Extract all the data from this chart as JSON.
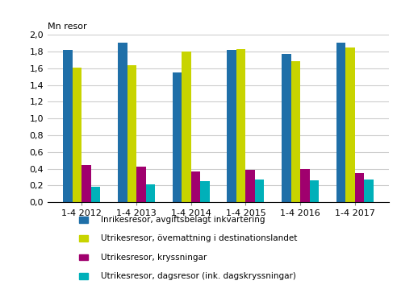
{
  "categories": [
    "1-4 2012",
    "1-4 2013",
    "1-4 2014",
    "1-4 2015",
    "1-4 2016",
    "1-4 2017"
  ],
  "series": [
    {
      "name": "Inrikesresor, avgiftsbelagt inkvartering",
      "color": "#1F6FA8",
      "values": [
        1.82,
        1.9,
        1.55,
        1.82,
        1.77,
        1.9
      ]
    },
    {
      "name": "Utrikesresor, övemattning i destinationslandet",
      "color": "#C8D400",
      "values": [
        1.61,
        1.64,
        1.8,
        1.83,
        1.68,
        1.85
      ]
    },
    {
      "name": "Utrikesresor, kryssningar",
      "color": "#A0006E",
      "values": [
        0.44,
        0.43,
        0.37,
        0.39,
        0.4,
        0.35
      ]
    },
    {
      "name": "Utrikesresor, dagsresor (ink. dagskryssningar)",
      "color": "#00B0B9",
      "values": [
        0.19,
        0.21,
        0.25,
        0.27,
        0.26,
        0.27
      ]
    }
  ],
  "ylabel": "Mn resor",
  "ylim": [
    0,
    2.0
  ],
  "yticks": [
    0.0,
    0.2,
    0.4,
    0.6,
    0.8,
    1.0,
    1.2,
    1.4,
    1.6,
    1.8,
    2.0
  ],
  "background_color": "#ffffff",
  "grid_color": "#cccccc",
  "bar_width": 0.17
}
